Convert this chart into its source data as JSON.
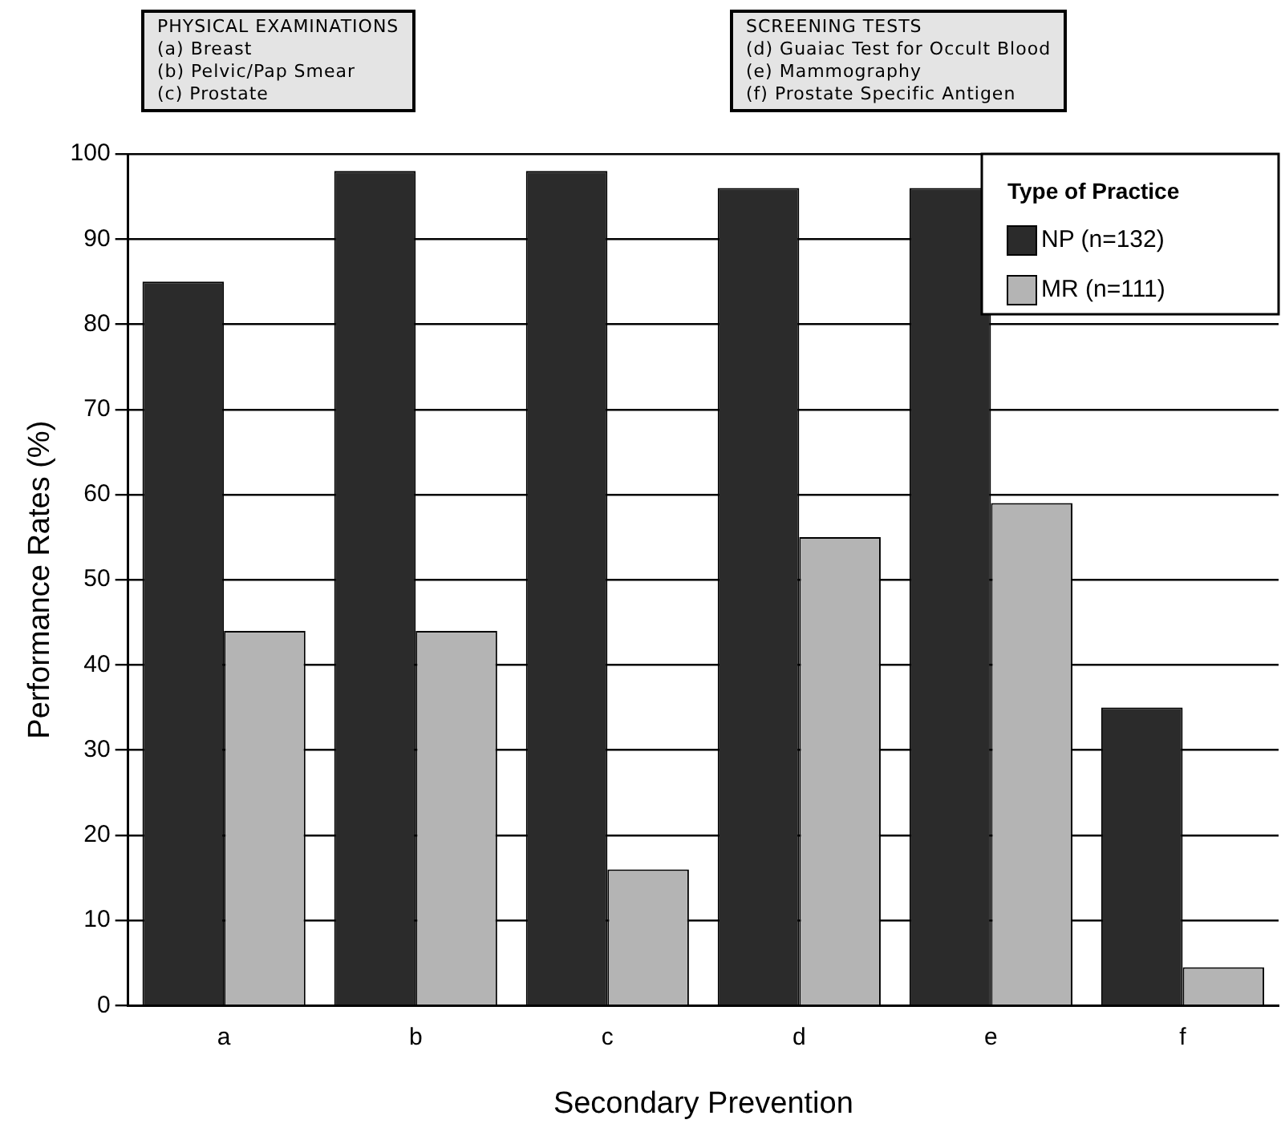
{
  "chart_data": {
    "type": "bar",
    "xlabel": "Secondary Prevention",
    "ylabel": "Performance Rates (%)",
    "annotations": [
      "PHYSICAL EXAMINATIONS\n(a) Breast\n(b) Pelvic/Pap Smear\n(c) Prostate",
      "SCREENING TESTS\n(d) Guaiac Test for Occult Blood\n(e) Mammography\n(f) Prostate Specific Antigen"
    ],
    "legend_title": "Type of Practice",
    "categories": [
      "a",
      "b",
      "c",
      "d",
      "e",
      "f"
    ],
    "series": [
      {
        "name": "NP (n=132)",
        "color": "#2b2b2b",
        "values": [
          85,
          98,
          98,
          96,
          96,
          35
        ]
      },
      {
        "name": "MR (n=111)",
        "color": "#b4b4b4",
        "values": [
          44,
          44,
          16,
          55,
          59,
          4.5
        ]
      }
    ],
    "ylim": [
      0,
      100
    ],
    "yticks": [
      0,
      10,
      20,
      30,
      40,
      50,
      60,
      70,
      80,
      90,
      100
    ],
    "grid": "y",
    "legend": "top right"
  }
}
